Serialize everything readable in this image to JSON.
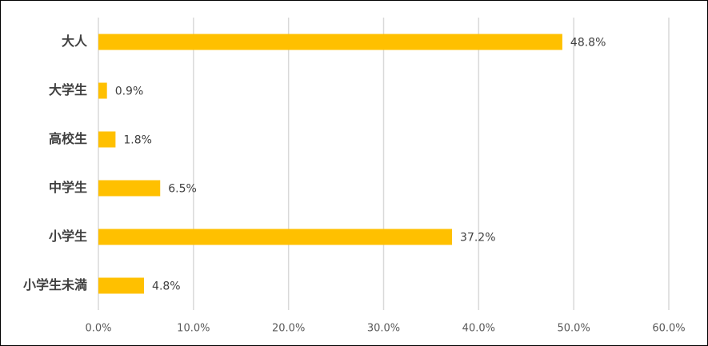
{
  "chart_data": {
    "type": "hbar",
    "categories": [
      "大人",
      "大学生",
      "高校生",
      "中学生",
      "小学生",
      "小学生未満"
    ],
    "values": [
      48.8,
      0.9,
      1.8,
      6.5,
      37.2,
      4.8
    ],
    "value_labels": [
      "48.8%",
      "0.9%",
      "1.8%",
      "6.5%",
      "37.2%",
      "4.8%"
    ],
    "color": "#ffc000",
    "xlim": [
      0,
      60
    ],
    "xticks": [
      {
        "value": 0,
        "label": "0.0%"
      },
      {
        "value": 10,
        "label": "10.0%"
      },
      {
        "value": 20,
        "label": "20.0%"
      },
      {
        "value": 30,
        "label": "30.0%"
      },
      {
        "value": 40,
        "label": "40.0%"
      },
      {
        "value": 50,
        "label": "50.0%"
      },
      {
        "value": 60,
        "label": "60.0%"
      }
    ],
    "grid": true
  }
}
